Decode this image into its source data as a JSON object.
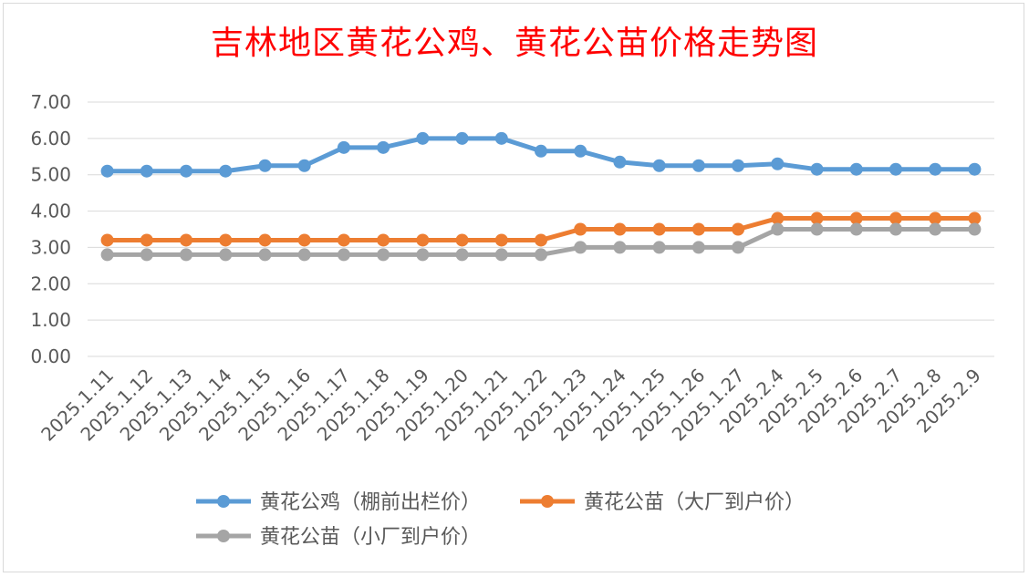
{
  "chart_data": {
    "type": "line",
    "title": "吉林地区黄花公鸡、黄花公苗价格走势图",
    "xlabel": "",
    "ylabel": "",
    "ylim": [
      0,
      7
    ],
    "y_ticks": [
      "0.00",
      "1.00",
      "2.00",
      "3.00",
      "4.00",
      "5.00",
      "6.00",
      "7.00"
    ],
    "grid": true,
    "legend_position": "bottom",
    "categories": [
      "2025.1.11",
      "2025.1.12",
      "2025.1.13",
      "2025.1.14",
      "2025.1.15",
      "2025.1.16",
      "2025.1.17",
      "2025.1.18",
      "2025.1.19",
      "2025.1.20",
      "2025.1.21",
      "2025.1.22",
      "2025.1.23",
      "2025.1.24",
      "2025.1.25",
      "2025.1.26",
      "2025.1.27",
      "2025.2.4",
      "2025.2.5",
      "2025.2.6",
      "2025.2.7",
      "2025.2.8",
      "2025.2.9"
    ],
    "series": [
      {
        "name": "黄花公鸡（棚前出栏价）",
        "color": "#5b9bd5",
        "values": [
          5.1,
          5.1,
          5.1,
          5.1,
          5.25,
          5.25,
          5.75,
          5.75,
          6.0,
          6.0,
          6.0,
          5.65,
          5.65,
          5.35,
          5.25,
          5.25,
          5.25,
          5.3,
          5.15,
          5.15,
          5.15,
          5.15,
          5.15
        ]
      },
      {
        "name": "黄花公苗（大厂到户价）",
        "color": "#ed7d31",
        "values": [
          3.2,
          3.2,
          3.2,
          3.2,
          3.2,
          3.2,
          3.2,
          3.2,
          3.2,
          3.2,
          3.2,
          3.2,
          3.5,
          3.5,
          3.5,
          3.5,
          3.5,
          3.8,
          3.8,
          3.8,
          3.8,
          3.8,
          3.8
        ]
      },
      {
        "name": "黄花公苗（小厂到户价）",
        "color": "#a5a5a5",
        "values": [
          2.8,
          2.8,
          2.8,
          2.8,
          2.8,
          2.8,
          2.8,
          2.8,
          2.8,
          2.8,
          2.8,
          2.8,
          3.0,
          3.0,
          3.0,
          3.0,
          3.0,
          3.5,
          3.5,
          3.5,
          3.5,
          3.5,
          3.5
        ]
      }
    ]
  }
}
